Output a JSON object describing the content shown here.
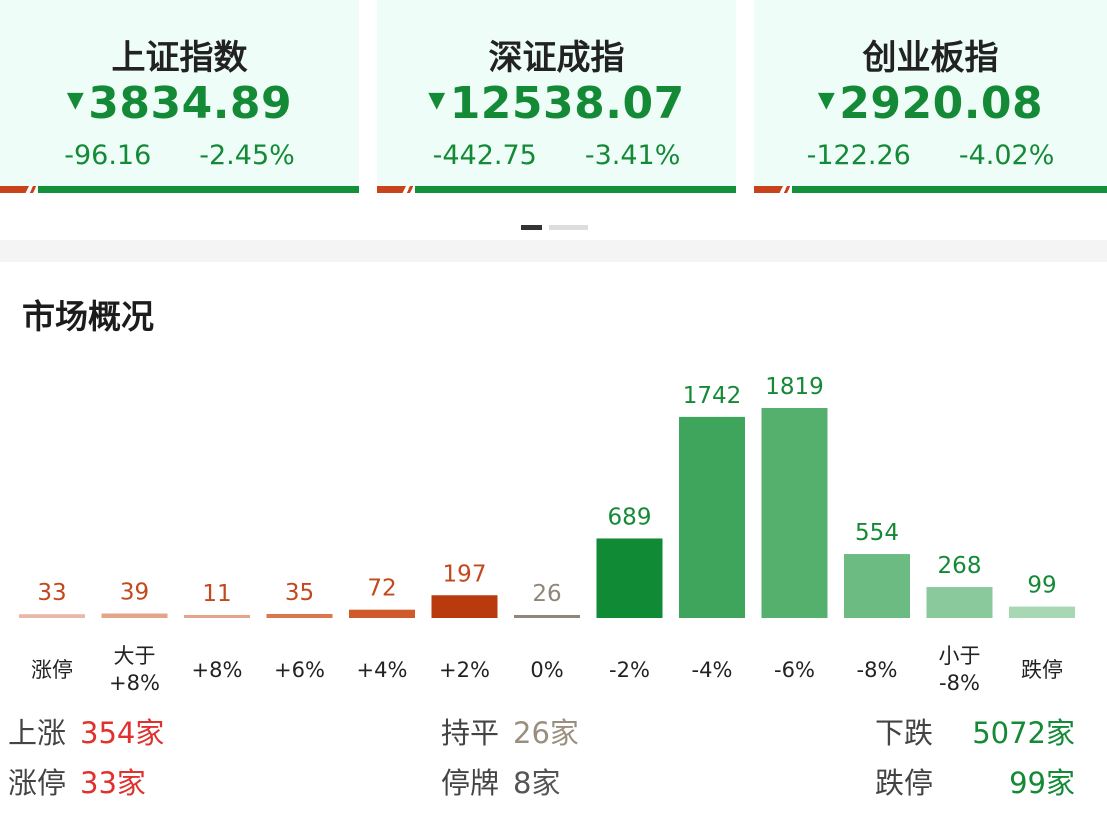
{
  "index_cards": [
    {
      "name": "上证指数",
      "value": "3834.89",
      "change": "-96.16",
      "percent": "-2.45%"
    },
    {
      "name": "深证成指",
      "value": "12538.07",
      "change": "-442.75",
      "percent": "-3.41%"
    },
    {
      "name": "创业板指",
      "value": "2920.08",
      "change": "-122.26",
      "percent": "-4.02%"
    }
  ],
  "arrow_glyph": "▼",
  "section_title": "市场概况",
  "colors": {
    "down_green": "#148a36",
    "up_red": "#e0312f",
    "flat_gray": "#9a8f7f",
    "card_bg": "#eefdf8"
  },
  "chart_data": {
    "type": "bar",
    "categories": [
      "涨停",
      "大于\n+8%",
      "+8%",
      "+6%",
      "+4%",
      "+2%",
      "0%",
      "-2%",
      "-4%",
      "-6%",
      "-8%",
      "小于\n-8%",
      "跌停"
    ],
    "values": [
      33,
      39,
      11,
      35,
      72,
      197,
      26,
      689,
      1742,
      1819,
      554,
      268,
      99
    ],
    "bar_colors": [
      "#e8b9a6",
      "#e3a487",
      "#e3a487",
      "#d9784f",
      "#cf5a2c",
      "#b83a0d",
      "#8f877a",
      "#118a35",
      "#3fa55d",
      "#55b06d",
      "#6cbb82",
      "#89c99b",
      "#a8d8b3"
    ],
    "label_colors": [
      "#c2481e",
      "#c2481e",
      "#c2481e",
      "#c2481e",
      "#c2481e",
      "#c2481e",
      "#8f877a",
      "#148a36",
      "#148a36",
      "#148a36",
      "#148a36",
      "#148a36",
      "#148a36"
    ]
  },
  "summary": {
    "rise_label": "上涨",
    "rise_value": "354家",
    "limit_up_label": "涨停",
    "limit_up_value": "33家",
    "flat_label": "持平",
    "flat_value": "26家",
    "suspend_label": "停牌",
    "suspend_value": "8家",
    "fall_label": "下跌",
    "fall_value": "5072家",
    "limit_down_label": "跌停",
    "limit_down_value": "99家"
  }
}
